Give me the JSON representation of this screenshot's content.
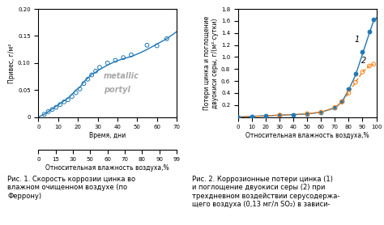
{
  "chart_data": [
    {
      "type": "line",
      "xlabel": "Время, дни",
      "ylabel": "Привес, г/м²",
      "xlim": [
        0,
        70
      ],
      "ylim": [
        0,
        0.2
      ],
      "xticks": [
        0,
        10,
        20,
        30,
        40,
        50,
        60,
        70
      ],
      "yticks": [
        0,
        0.05,
        {
          "value": 0.1,
          "label": "0.10"
        },
        0.15,
        {
          "value": 0.2,
          "label": "0.20"
        }
      ],
      "x2label": "Относительная влажность воздуха,%",
      "x2ticks": [
        0,
        15,
        30,
        50,
        60,
        70,
        80,
        90,
        99
      ],
      "series": [
        {
          "type": "line",
          "line_style": "solid",
          "x": [
            0,
            3,
            5,
            7,
            9,
            11,
            13,
            15,
            17,
            19,
            21,
            23,
            25,
            27,
            29,
            31,
            35,
            39,
            43,
            47,
            51,
            55,
            60,
            65,
            70
          ],
          "values": [
            0,
            0.005,
            0.01,
            0.015,
            0.02,
            0.025,
            0.03,
            0.035,
            0.042,
            0.05,
            0.055,
            0.065,
            0.072,
            0.079,
            0.083,
            0.088,
            0.096,
            0.103,
            0.108,
            0.112,
            0.118,
            0.125,
            0.135,
            0.145,
            0.158
          ]
        },
        {
          "type": "scatter",
          "marker": "open_circle",
          "x": [
            3,
            5,
            7,
            9,
            11,
            13,
            15,
            17,
            19,
            21,
            23,
            25,
            27,
            29,
            31,
            35,
            39,
            43,
            47,
            55,
            60,
            65
          ],
          "values": [
            0.005,
            0.01,
            0.014,
            0.018,
            0.023,
            0.028,
            0.032,
            0.038,
            0.045,
            0.052,
            0.062,
            0.07,
            0.078,
            0.085,
            0.092,
            0.1,
            0.105,
            0.11,
            0.115,
            0.133,
            0.132,
            0.145
          ]
        }
      ],
      "annotations": [
        {
          "text": "metallic"
        },
        {
          "text": "portyl"
        }
      ],
      "caption": [
        "Рис. 1. Скорость коррозии цинка во",
        "влажном очищенном воздухе (по",
        "Феррону)"
      ]
    },
    {
      "type": "line",
      "xlabel": "Относительная влажность воздуха,%",
      "ylabel": "Потери цинка и поглощение\nдвуокиси серы, г/(м²·сутки)",
      "xlim": [
        0,
        100
      ],
      "ylim": [
        0,
        1.8
      ],
      "xticks": [
        0,
        10,
        20,
        30,
        40,
        50,
        60,
        70,
        80,
        90,
        100
      ],
      "yticks": [
        0.2,
        0.4,
        0.6,
        0.8,
        {
          "value": 1.0,
          "label": "1.0"
        },
        1.2,
        1.4,
        1.6,
        1.8
      ],
      "series": [
        {
          "type": "line",
          "line_style": "solid",
          "x": [
            0,
            10,
            20,
            30,
            40,
            50,
            60,
            70,
            75,
            80,
            85,
            90,
            95,
            98,
            100
          ],
          "values": [
            0,
            0.01,
            0.02,
            0.03,
            0.04,
            0.05,
            0.08,
            0.15,
            0.25,
            0.45,
            0.7,
            1.05,
            1.4,
            1.6,
            1.65
          ]
        },
        {
          "type": "scatter",
          "marker": "filled_circle",
          "x": [
            0,
            10,
            20,
            30,
            40,
            50,
            60,
            70,
            75,
            80,
            85,
            90,
            95,
            98
          ],
          "values": [
            0,
            0.01,
            0.02,
            0.03,
            0.04,
            0.05,
            0.08,
            0.16,
            0.27,
            0.47,
            0.72,
            1.08,
            1.42,
            1.62
          ]
        },
        {
          "type": "line",
          "line_style": "dashed",
          "x": [
            0,
            30,
            50,
            60,
            70,
            75,
            80,
            85,
            90,
            95,
            98
          ],
          "values": [
            0,
            0.03,
            0.055,
            0.08,
            0.16,
            0.25,
            0.4,
            0.58,
            0.75,
            0.85,
            0.88
          ]
        },
        {
          "type": "scatter",
          "marker": "open_circle",
          "x": [
            30,
            50,
            60,
            70,
            75,
            80,
            85,
            90,
            95,
            98
          ],
          "values": [
            0.03,
            0.055,
            0.08,
            0.16,
            0.25,
            0.4,
            0.58,
            0.75,
            0.85,
            0.88
          ]
        }
      ],
      "annotations": [
        {
          "text": "1",
          "x": 84,
          "y": 1.25
        },
        {
          "text": "2",
          "x": 89,
          "y": 0.9
        }
      ],
      "caption": [
        "Рис. 2. Коррозионные потери цинка (1)",
        "и поглощение двуокиси серы (2) при",
        "трехдневном воздействии серусодержа-",
        "щего воздуха (0,13 мг/л SO₂) в зависи-"
      ]
    }
  ]
}
